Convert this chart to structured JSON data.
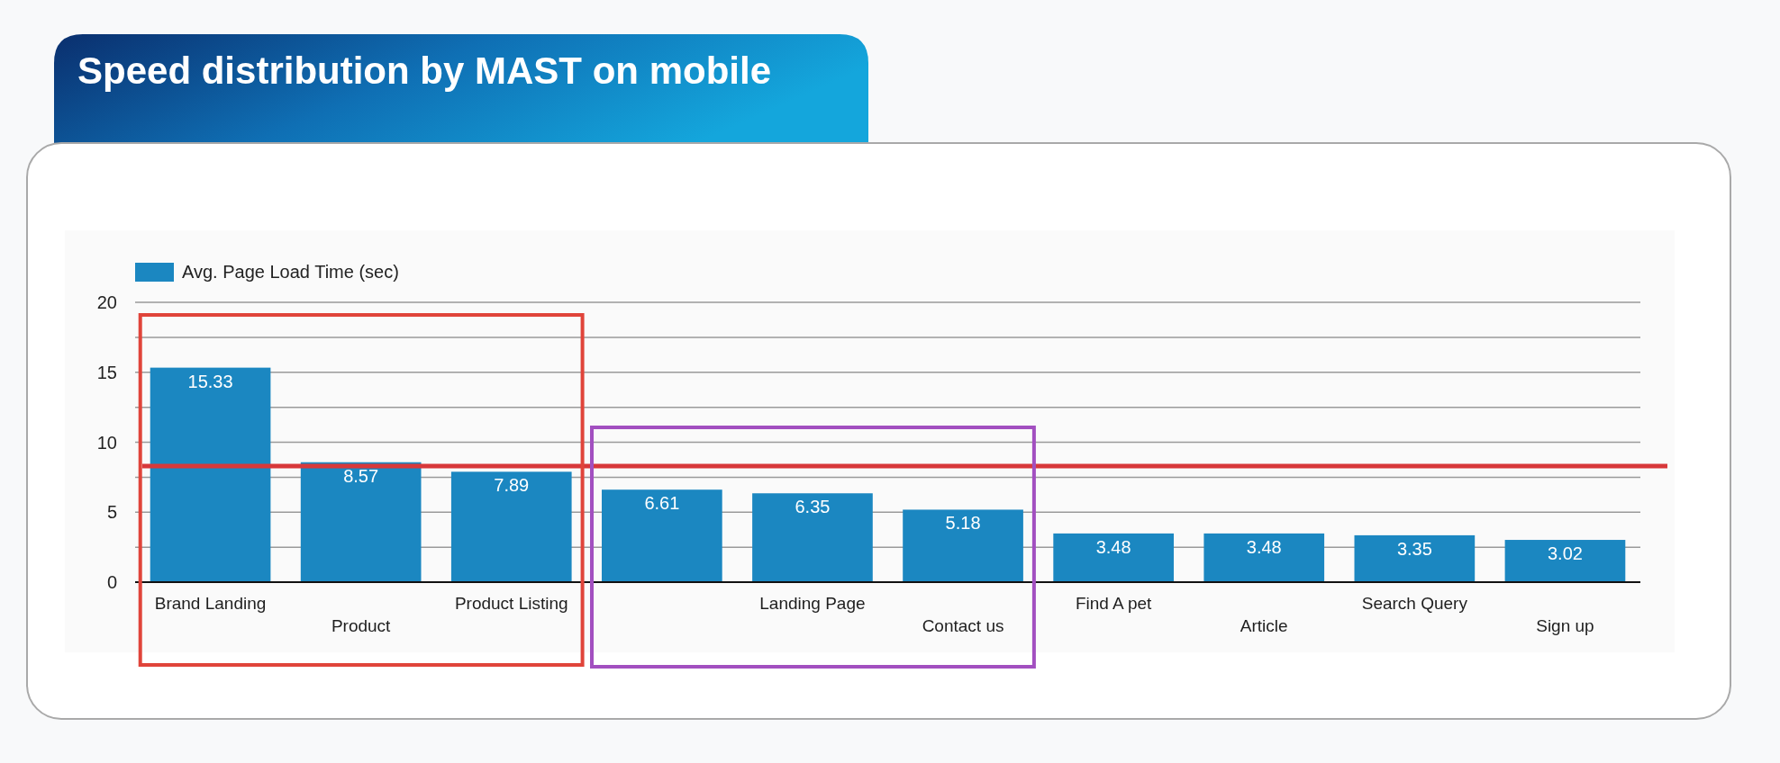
{
  "chart_data": {
    "type": "bar",
    "title": "Speed distribution by MAST on mobile",
    "categories": [
      "Brand Landing",
      "Product",
      "Product Listing",
      null,
      "Landing Page",
      "Contact us",
      "Find A pet",
      "Article",
      "Search Query",
      "Sign up"
    ],
    "series": [
      {
        "name": "Avg. Page Load Time (sec)",
        "color": "#1b87c1",
        "values": [
          15.33,
          8.57,
          7.89,
          6.61,
          6.35,
          5.18,
          3.48,
          3.48,
          3.35,
          3.02
        ]
      }
    ],
    "ylim": [
      0,
      20
    ],
    "yticks": [
      0,
      {
        "value": 2.5,
        "label": null
      },
      5,
      {
        "value": 7.5,
        "label": null
      },
      10,
      {
        "value": 12.5,
        "label": null
      },
      15,
      {
        "value": 17.5,
        "label": null
      },
      20
    ],
    "grid": "y",
    "legend": "top left",
    "data_labels": true,
    "ref_lines": [
      {
        "axis": "y",
        "value": 8.3,
        "color": "#d8383a"
      }
    ]
  }
}
